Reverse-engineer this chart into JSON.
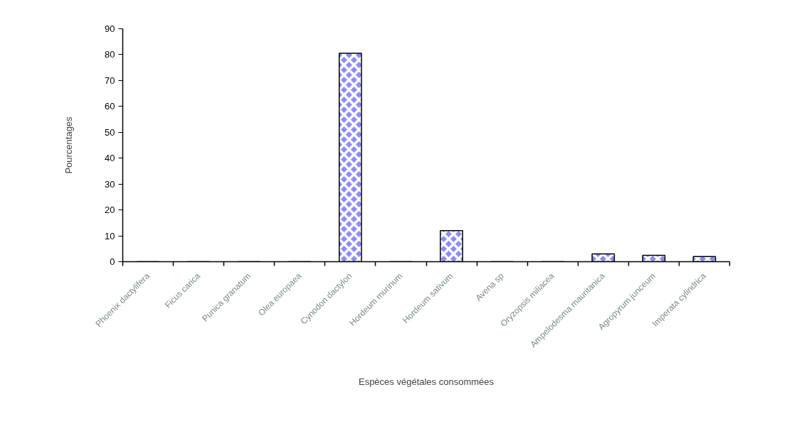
{
  "chart_data": {
    "type": "bar",
    "xlabel": "Espèces végétales consommées",
    "ylabel": "Pourcentages",
    "categories": [
      "Phoenix dactylifera",
      "Ficus carica",
      "Punica granatum",
      "Olea europaea",
      "Cynodon dactylon",
      "Hordeum murinum",
      "Hordeum sativum",
      "Avena sp",
      "Oryzopsis miliacea",
      "Ampelodesma mauritanica",
      "Agropyrum junceum",
      "Imperata cylindrica"
    ],
    "values": [
      0,
      0,
      0,
      0,
      80.5,
      0,
      12,
      0,
      0,
      3,
      2.5,
      2
    ],
    "color": "#8c8cff",
    "ylim": [
      0,
      90
    ],
    "yticks": [
      0,
      10,
      20,
      30,
      40,
      50,
      60,
      70,
      80,
      90
    ]
  }
}
